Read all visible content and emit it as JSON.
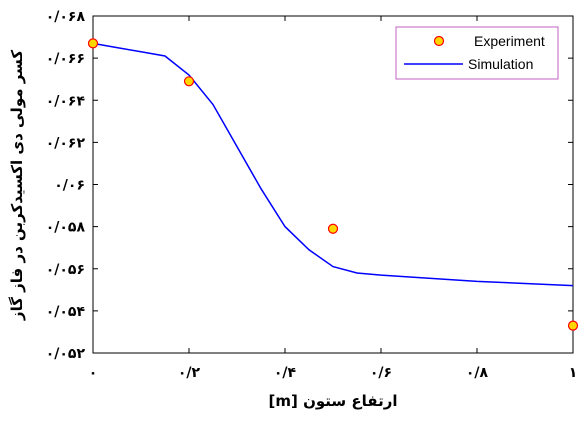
{
  "chart_data": {
    "type": "line",
    "xlabel": "ارتفاع ستون [m]",
    "ylabel": "کسر مولی دی اکسیدکربن در فاز گاز",
    "xlim": [
      0,
      1
    ],
    "ylim": [
      0.052,
      0.068
    ],
    "x_ticks": [
      {
        "value": 0,
        "label": "۰"
      },
      {
        "value": 0.2,
        "label": "۰/۲"
      },
      {
        "value": 0.4,
        "label": "۰/۴"
      },
      {
        "value": 0.6,
        "label": "۰/۶"
      },
      {
        "value": 0.8,
        "label": "۰/۸"
      },
      {
        "value": 1.0,
        "label": "۱"
      }
    ],
    "y_ticks": [
      {
        "value": 0.052,
        "label": "۰/۰۵۲"
      },
      {
        "value": 0.054,
        "label": "۰/۰۵۴"
      },
      {
        "value": 0.056,
        "label": "۰/۰۵۶"
      },
      {
        "value": 0.058,
        "label": "۰/۰۵۸"
      },
      {
        "value": 0.06,
        "label": "۰/۰۶"
      },
      {
        "value": 0.062,
        "label": "۰/۰۶۲"
      },
      {
        "value": 0.064,
        "label": "۰/۰۶۴"
      },
      {
        "value": 0.066,
        "label": "۰/۰۶۶"
      },
      {
        "value": 0.068,
        "label": "۰/۰۶۸"
      }
    ],
    "grid": false,
    "legend_position": "top-right",
    "series": [
      {
        "name": "Experiment",
        "kind": "scatter",
        "color": "#ff0000",
        "fill": "#ffd700",
        "x": [
          0,
          0.2,
          0.5,
          1.0
        ],
        "y": [
          0.0667,
          0.0649,
          0.0579,
          0.0533
        ]
      },
      {
        "name": "Simulation",
        "kind": "line",
        "color": "#0000ff",
        "x": [
          0,
          0.05,
          0.1,
          0.15,
          0.2,
          0.25,
          0.3,
          0.35,
          0.4,
          0.45,
          0.5,
          0.55,
          0.6,
          0.7,
          0.8,
          0.9,
          1.0
        ],
        "y": [
          0.0667,
          0.0665,
          0.0663,
          0.0661,
          0.0652,
          0.0638,
          0.0618,
          0.0598,
          0.058,
          0.0569,
          0.0561,
          0.0558,
          0.0557,
          0.05555,
          0.0554,
          0.0553,
          0.0552
        ]
      }
    ]
  }
}
